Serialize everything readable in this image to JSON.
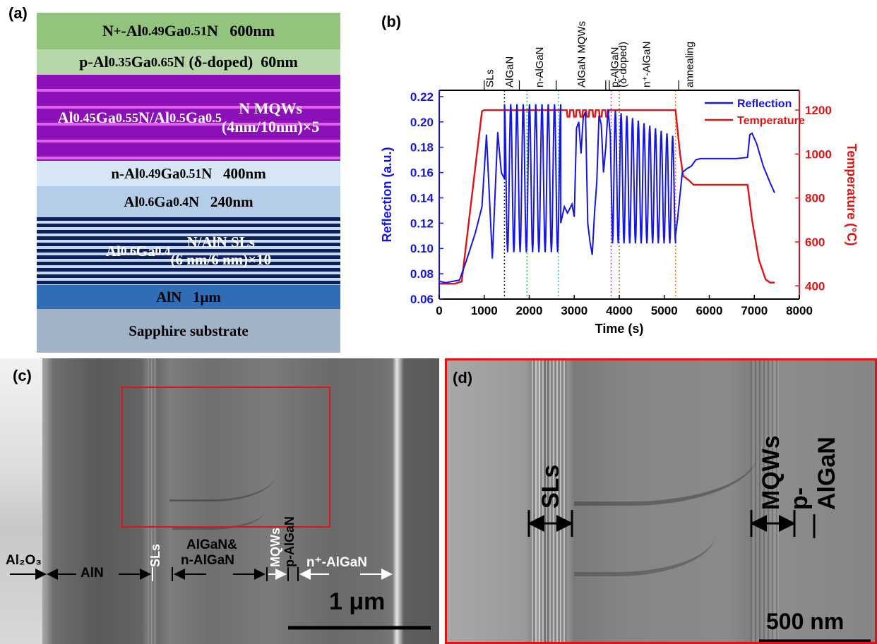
{
  "panels": {
    "a": "(a)",
    "b": "(b)",
    "c": "(c)",
    "d": "(d)"
  },
  "stack": {
    "layers": [
      {
        "html": "N<sup>+</sup>-Al<sub>0.49</sub>Ga<sub>0.51</sub>N&nbsp;&nbsp;&nbsp;600nm",
        "text": "N+-Al0.49Ga0.51N 600nm",
        "color": "#93c47d"
      },
      {
        "html": "p-Al<sub>0.35</sub>Ga<sub>0.65</sub>N (δ-doped)&nbsp;&nbsp;60nm",
        "text": "p-Al0.35Ga0.65N (δ-doped) 60nm",
        "color": "#b6d7a8"
      },
      {
        "html": "Al<sub>0.45</sub>Ga<sub>0.55</sub>N/Al<sub>0.5</sub>Ga<sub>0.5</sub>N MQWs<br>(4nm/10nm)×5",
        "text": "Al0.45Ga0.55N/Al0.5Ga0.5N MQWs (4nm/10nm)×5",
        "color": "#8b10b8"
      },
      {
        "html": "n-Al<sub>0.49</sub>Ga<sub>0.51</sub>N&nbsp;&nbsp;&nbsp;400nm",
        "text": "n-Al0.49Ga0.51N 400nm",
        "color": "#d6e6f4"
      },
      {
        "html": "Al<sub>0.6</sub>Ga<sub>0.4</sub>N&nbsp;&nbsp;&nbsp;240nm",
        "text": "Al0.6Ga0.4N 240nm",
        "color": "#b4cde8"
      },
      {
        "html": "Al<sub>0.6</sub>Ga<sub>0.4</sub>N/AlN SLs<br>(6 nm/6 nm)×10",
        "text": "Al0.6Ga0.4N/AlN SLs (6 nm/6 nm)×10",
        "color": "#0f1f5a"
      },
      {
        "html": "AlN&nbsp;&nbsp;&nbsp;1μm",
        "text": "AlN 1μm",
        "color": "#2f6db5"
      },
      {
        "html": "Sapphire substrate",
        "text": "Sapphire substrate",
        "color": "#a3b3c7"
      }
    ]
  },
  "chart_data": {
    "type": "line",
    "xlabel": "Time (s)",
    "ylabel_left": "Reflection (a.u.)",
    "ylabel_right": "Temperature (°C)",
    "xlim": [
      0,
      8000
    ],
    "ylim_left": [
      0.06,
      0.225
    ],
    "ylim_right": [
      340,
      1290
    ],
    "x_ticks": [
      "0",
      "1000",
      "2000",
      "3000",
      "4000",
      "5000",
      "6000",
      "7000",
      "8000"
    ],
    "y_ticks_left": [
      "0.06",
      "0.08",
      "0.10",
      "0.12",
      "0.14",
      "0.16",
      "0.18",
      "0.20",
      "0.22"
    ],
    "y_ticks_right": [
      "400",
      "600",
      "800",
      "1000",
      "1200"
    ],
    "legend_position": "top-right",
    "series": [
      {
        "name": "Reflection",
        "color": "#1515e6",
        "axis": "left"
      },
      {
        "name": "Temperature",
        "color": "#e01414",
        "axis": "right"
      }
    ],
    "temperature_points": [
      [
        0,
        410
      ],
      [
        350,
        410
      ],
      [
        500,
        420
      ],
      [
        950,
        1195
      ],
      [
        1000,
        1200
      ],
      [
        2800,
        1200
      ],
      [
        5250,
        1200
      ],
      [
        5350,
        1000
      ],
      [
        5420,
        900
      ],
      [
        5550,
        880
      ],
      [
        5650,
        860
      ],
      [
        6850,
        860
      ],
      [
        6950,
        700
      ],
      [
        7100,
        520
      ],
      [
        7250,
        430
      ],
      [
        7350,
        415
      ],
      [
        7450,
        415
      ]
    ],
    "temperature_ripples": {
      "start": 2800,
      "end": 3800,
      "count": 7,
      "low": 1170,
      "high": 1200
    },
    "reflection_points": [
      [
        0,
        0.074
      ],
      [
        150,
        0.073
      ],
      [
        300,
        0.074
      ],
      [
        450,
        0.075
      ],
      [
        600,
        0.09
      ],
      [
        800,
        0.112
      ],
      [
        950,
        0.133
      ],
      [
        1050,
        0.19
      ],
      [
        1180,
        0.092
      ],
      [
        1300,
        0.192
      ],
      [
        1380,
        0.16
      ],
      [
        1450,
        0.155
      ]
    ],
    "reflection_oscillations": [
      {
        "start": 1450,
        "end": 2700,
        "count": 9,
        "low": 0.097,
        "high": 0.214
      },
      {
        "start": 3850,
        "end": 5250,
        "count": 11,
        "low": 0.104,
        "high": 0.21
      }
    ],
    "reflection_mqw_points": [
      [
        2700,
        0.12
      ],
      [
        2780,
        0.133
      ],
      [
        2850,
        0.128
      ],
      [
        2950,
        0.135
      ],
      [
        3000,
        0.125
      ],
      [
        3050,
        0.195
      ],
      [
        3100,
        0.2
      ],
      [
        3150,
        0.175
      ],
      [
        3200,
        0.204
      ],
      [
        3250,
        0.208
      ],
      [
        3300,
        0.12
      ],
      [
        3350,
        0.105
      ],
      [
        3400,
        0.095
      ],
      [
        3450,
        0.128
      ],
      [
        3500,
        0.152
      ],
      [
        3550,
        0.205
      ],
      [
        3600,
        0.198
      ],
      [
        3650,
        0.16
      ],
      [
        3700,
        0.18
      ],
      [
        3750,
        0.21
      ],
      [
        3800,
        0.19
      ],
      [
        3850,
        0.104
      ]
    ],
    "reflection_tail_points": [
      [
        5250,
        0.11
      ],
      [
        5300,
        0.125
      ],
      [
        5400,
        0.16
      ],
      [
        5500,
        0.163
      ],
      [
        5600,
        0.165
      ],
      [
        5700,
        0.17
      ],
      [
        5800,
        0.171
      ],
      [
        6000,
        0.171
      ],
      [
        6300,
        0.171
      ],
      [
        6600,
        0.171
      ],
      [
        6850,
        0.172
      ],
      [
        6900,
        0.19
      ],
      [
        6950,
        0.191
      ],
      [
        7050,
        0.183
      ],
      [
        7200,
        0.165
      ],
      [
        7350,
        0.152
      ],
      [
        7450,
        0.144
      ]
    ],
    "stage_lines": [
      {
        "x": 1450,
        "color": "#222222"
      },
      {
        "x": 1950,
        "color": "#22bb44"
      },
      {
        "x": 2650,
        "color": "#22bbdd"
      },
      {
        "x": 3820,
        "color": "#ee22ee"
      },
      {
        "x": 4000,
        "color": "#888800"
      },
      {
        "x": 5250,
        "color": "#ff7700"
      }
    ],
    "stage_labels": [
      {
        "text": "SLs",
        "x": 1120
      },
      {
        "text": "AlGaN",
        "x": 1560
      },
      {
        "text": "n-AlGaN",
        "x": 2230
      },
      {
        "text": "AlGaN MQWs",
        "x": 3160
      },
      {
        "text": "p-AlGaN",
        "x": 3900
      },
      {
        "text": "(δ-doped)",
        "x": 4080
      },
      {
        "text": "n⁺-AlGaN",
        "x": 4600
      },
      {
        "text": "annealing",
        "x": 5560
      }
    ]
  },
  "sem_c": {
    "labels": {
      "al2o3": "Al₂O₃",
      "aln": "AlN",
      "sls": "SLs",
      "algan_n1": "AlGaN&",
      "algan_n2": "n-AlGaN",
      "mqws": "MQWs",
      "palgan": "p-AlGaN",
      "nplus": "n⁺-AlGaN",
      "scale": "1 μm"
    }
  },
  "sem_d": {
    "labels": {
      "sls": "SLs",
      "mqws": "MQWs",
      "palgan": "p-AlGaN",
      "scale": "500 nm"
    }
  }
}
